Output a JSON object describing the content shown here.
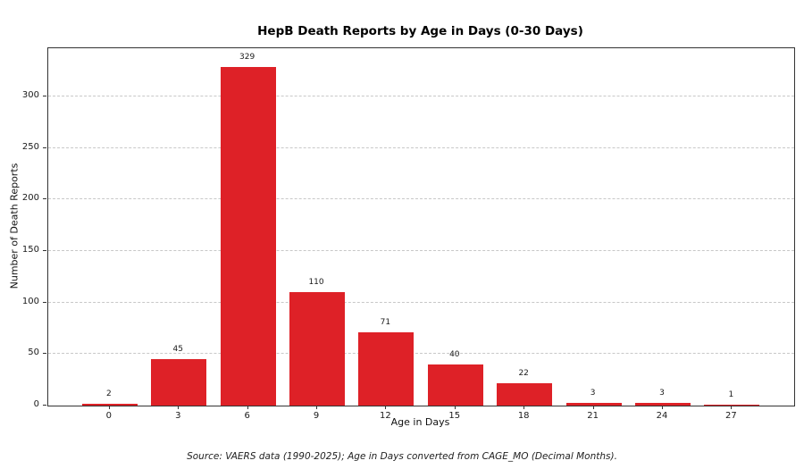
{
  "page": {
    "background": "#ffffff"
  },
  "chart_data": {
    "type": "bar",
    "title": "HepB Death Reports by Age in Days (0-30 Days)",
    "xlabel": "Age in Days",
    "ylabel": "Number of Death Reports",
    "source_note": "Source: VAERS data (1990-2025); Age in Days converted from CAGE_MO (Decimal Months).",
    "categories": [
      0,
      3,
      6,
      9,
      12,
      15,
      18,
      21,
      24,
      27
    ],
    "values": [
      2,
      45,
      329,
      110,
      71,
      40,
      22,
      3,
      3,
      1
    ],
    "bar_labels": [
      "2",
      "45",
      "329",
      "110",
      "71",
      "40",
      "22",
      "3",
      "3",
      "1"
    ],
    "yticks": [
      0,
      50,
      100,
      150,
      200,
      250,
      300
    ],
    "ylim": [
      0,
      347
    ],
    "xlim": [
      -2.67,
      29.7
    ],
    "bar_width_days": 2.4,
    "bar_color": "#de2127",
    "grid": {
      "axis": "y",
      "style": "dashed",
      "color": "#c8c8c8"
    },
    "legend": "none",
    "spine_color": "#333333"
  }
}
